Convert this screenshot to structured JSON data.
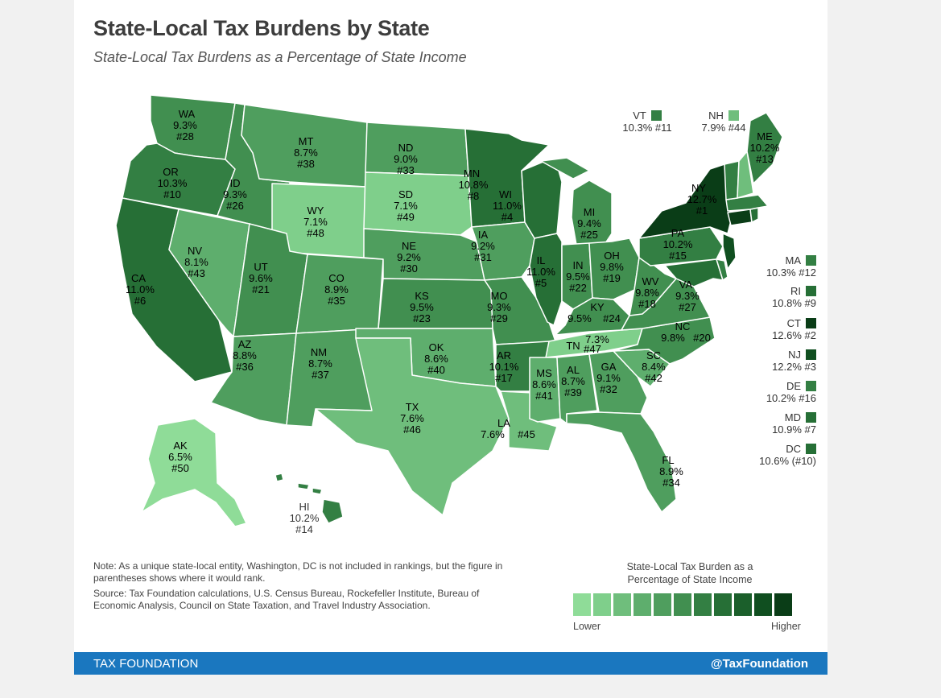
{
  "title": "State-Local Tax Burdens by State",
  "subtitle": "State-Local Tax Burdens as a Percentage of State Income",
  "colors": {
    "shade1": "#8fdc98",
    "shade2": "#7fcf8b",
    "shade3": "#6fbe7c",
    "shade4": "#5eae6d",
    "shade5": "#4f9e5e",
    "shade6": "#418f50",
    "shade7": "#337f43",
    "shade8": "#266f36",
    "shade9": "#1b5f2b",
    "shade10": "#104f20",
    "shade11": "#0a3d17",
    "footer": "#1a77bf"
  },
  "states": [
    {
      "code": "WA",
      "value": "9.3%",
      "rank": "#28"
    },
    {
      "code": "OR",
      "value": "10.3%",
      "rank": "#10"
    },
    {
      "code": "CA",
      "value": "11.0%",
      "rank": "#6"
    },
    {
      "code": "ID",
      "value": "9.3%",
      "rank": "#26"
    },
    {
      "code": "NV",
      "value": "8.1%",
      "rank": "#43"
    },
    {
      "code": "MT",
      "value": "8.7%",
      "rank": "#38"
    },
    {
      "code": "WY",
      "value": "7.1%",
      "rank": "#48"
    },
    {
      "code": "UT",
      "value": "9.6%",
      "rank": "#21"
    },
    {
      "code": "AZ",
      "value": "8.8%",
      "rank": "#36"
    },
    {
      "code": "CO",
      "value": "8.9%",
      "rank": "#35"
    },
    {
      "code": "NM",
      "value": "8.7%",
      "rank": "#37"
    },
    {
      "code": "ND",
      "value": "9.0%",
      "rank": "#33"
    },
    {
      "code": "SD",
      "value": "7.1%",
      "rank": "#49"
    },
    {
      "code": "NE",
      "value": "9.2%",
      "rank": "#30"
    },
    {
      "code": "KS",
      "value": "9.5%",
      "rank": "#23"
    },
    {
      "code": "OK",
      "value": "8.6%",
      "rank": "#40"
    },
    {
      "code": "TX",
      "value": "7.6%",
      "rank": "#46"
    },
    {
      "code": "MN",
      "value": "10.8%",
      "rank": "#8"
    },
    {
      "code": "IA",
      "value": "9.2%",
      "rank": "#31"
    },
    {
      "code": "MO",
      "value": "9.3%",
      "rank": "#29"
    },
    {
      "code": "AR",
      "value": "10.1%",
      "rank": "#17"
    },
    {
      "code": "LA",
      "value": "7.6%",
      "rank": "#45"
    },
    {
      "code": "WI",
      "value": "11.0%",
      "rank": "#4"
    },
    {
      "code": "IL",
      "value": "11.0%",
      "rank": "#5"
    },
    {
      "code": "MI",
      "value": "9.4%",
      "rank": "#25"
    },
    {
      "code": "IN",
      "value": "9.5%",
      "rank": "#22"
    },
    {
      "code": "OH",
      "value": "9.8%",
      "rank": "#19"
    },
    {
      "code": "KY",
      "value": "9.5%",
      "rank": "#24"
    },
    {
      "code": "TN",
      "value": "7.3%",
      "rank": "#47"
    },
    {
      "code": "MS",
      "value": "8.6%",
      "rank": "#41"
    },
    {
      "code": "AL",
      "value": "8.7%",
      "rank": "#39"
    },
    {
      "code": "GA",
      "value": "9.1%",
      "rank": "#32"
    },
    {
      "code": "FL",
      "value": "8.9%",
      "rank": "#34"
    },
    {
      "code": "SC",
      "value": "8.4%",
      "rank": "#42"
    },
    {
      "code": "NC",
      "value": "9.8%",
      "rank": "#20"
    },
    {
      "code": "VA",
      "value": "9.3%",
      "rank": "#27"
    },
    {
      "code": "WV",
      "value": "9.8%",
      "rank": "#18"
    },
    {
      "code": "PA",
      "value": "10.2%",
      "rank": "#15"
    },
    {
      "code": "NY",
      "value": "12.7%",
      "rank": "#1"
    },
    {
      "code": "ME",
      "value": "10.2%",
      "rank": "#13"
    },
    {
      "code": "AK",
      "value": "6.5%",
      "rank": "#50"
    },
    {
      "code": "HI",
      "value": "10.2%",
      "rank": "#14"
    }
  ],
  "callouts_top": [
    {
      "code": "VT",
      "text": "10.3% #11"
    },
    {
      "code": "NH",
      "text": "7.9% #44"
    }
  ],
  "callouts_side": [
    {
      "code": "MA",
      "text": "10.3% #12"
    },
    {
      "code": "RI",
      "text": "10.8% #9"
    },
    {
      "code": "CT",
      "text": "12.6% #2"
    },
    {
      "code": "NJ",
      "text": "12.2% #3"
    },
    {
      "code": "DE",
      "text": "10.2% #16"
    },
    {
      "code": "MD",
      "text": "10.9% #7"
    },
    {
      "code": "DC",
      "text": "10.6% (#10)"
    }
  ],
  "note": "Note: As a unique state-local entity, Washington, DC is not included in rankings, but the figure in parentheses shows where it would rank.",
  "source": "Source: Tax Foundation calculations, U.S. Census Bureau, Rockefeller Institute, Bureau of Economic Analysis, Council on State Taxation, and Travel Industry Association.",
  "legend": {
    "title_line1": "State-Local Tax Burden as a",
    "title_line2": "Percentage of State Income",
    "low": "Lower",
    "high": "Higher"
  },
  "footer": {
    "left": "TAX FOUNDATION",
    "right": "@TaxFoundation"
  }
}
